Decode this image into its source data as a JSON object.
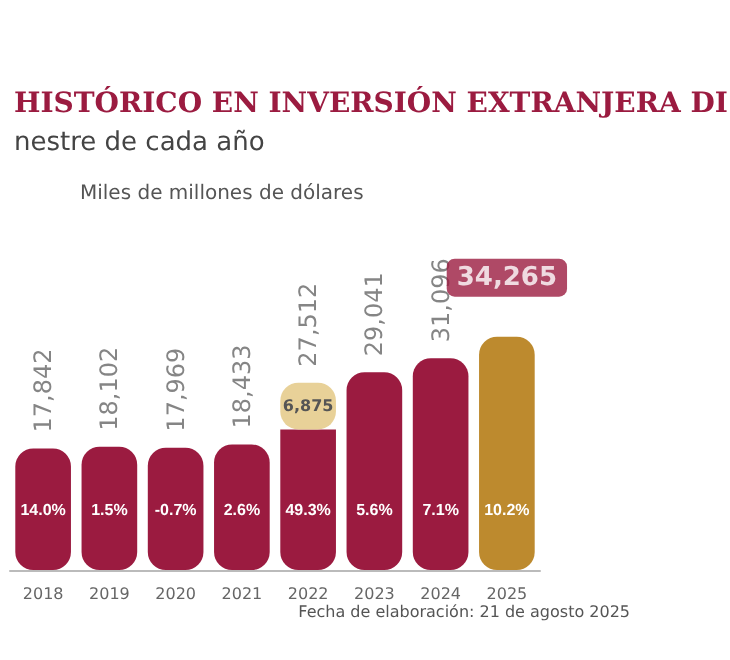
{
  "chart_data": {
    "type": "bar",
    "title": "HISTÓRICO EN INVERSIÓN EXTRANJERA DI",
    "subtitle": "nestre de cada año",
    "categories": [
      "2018",
      "2019",
      "2020",
      "2021",
      "2022",
      "2023",
      "2024",
      "2025"
    ],
    "stacked": true,
    "tick_labels": "x",
    "series": [
      {
        "colors": [
          "#9b1b40",
          "#9b1b40",
          "#9b1b40",
          "#9b1b40",
          "#9b1b40",
          "#9b1b40",
          "#9b1b40",
          "#bd8a2e"
        ],
        "values": [
          17842,
          18102,
          17969,
          18433,
          20637,
          29041,
          31096,
          34265
        ]
      },
      {
        "color": "#e8d198",
        "values": [
          null,
          null,
          null,
          null,
          6875,
          null,
          null,
          null
        ],
        "value_labels": [
          null,
          null,
          null,
          null,
          "6,875",
          null,
          null,
          null
        ]
      }
    ],
    "totals": [
      "17,842",
      "18,102",
      "17,969",
      "18,433",
      "27,512",
      "29,041",
      "31,096",
      "34,265"
    ],
    "annotations": [
      "Miles de millones de dólares",
      "Fecha de elaboración: 21 de agosto 2025",
      "14.0%",
      "1.5%",
      "-0.7%",
      "2.6%",
      "49.3%",
      "5.6%",
      "7.1%",
      "10.2%"
    ]
  }
}
